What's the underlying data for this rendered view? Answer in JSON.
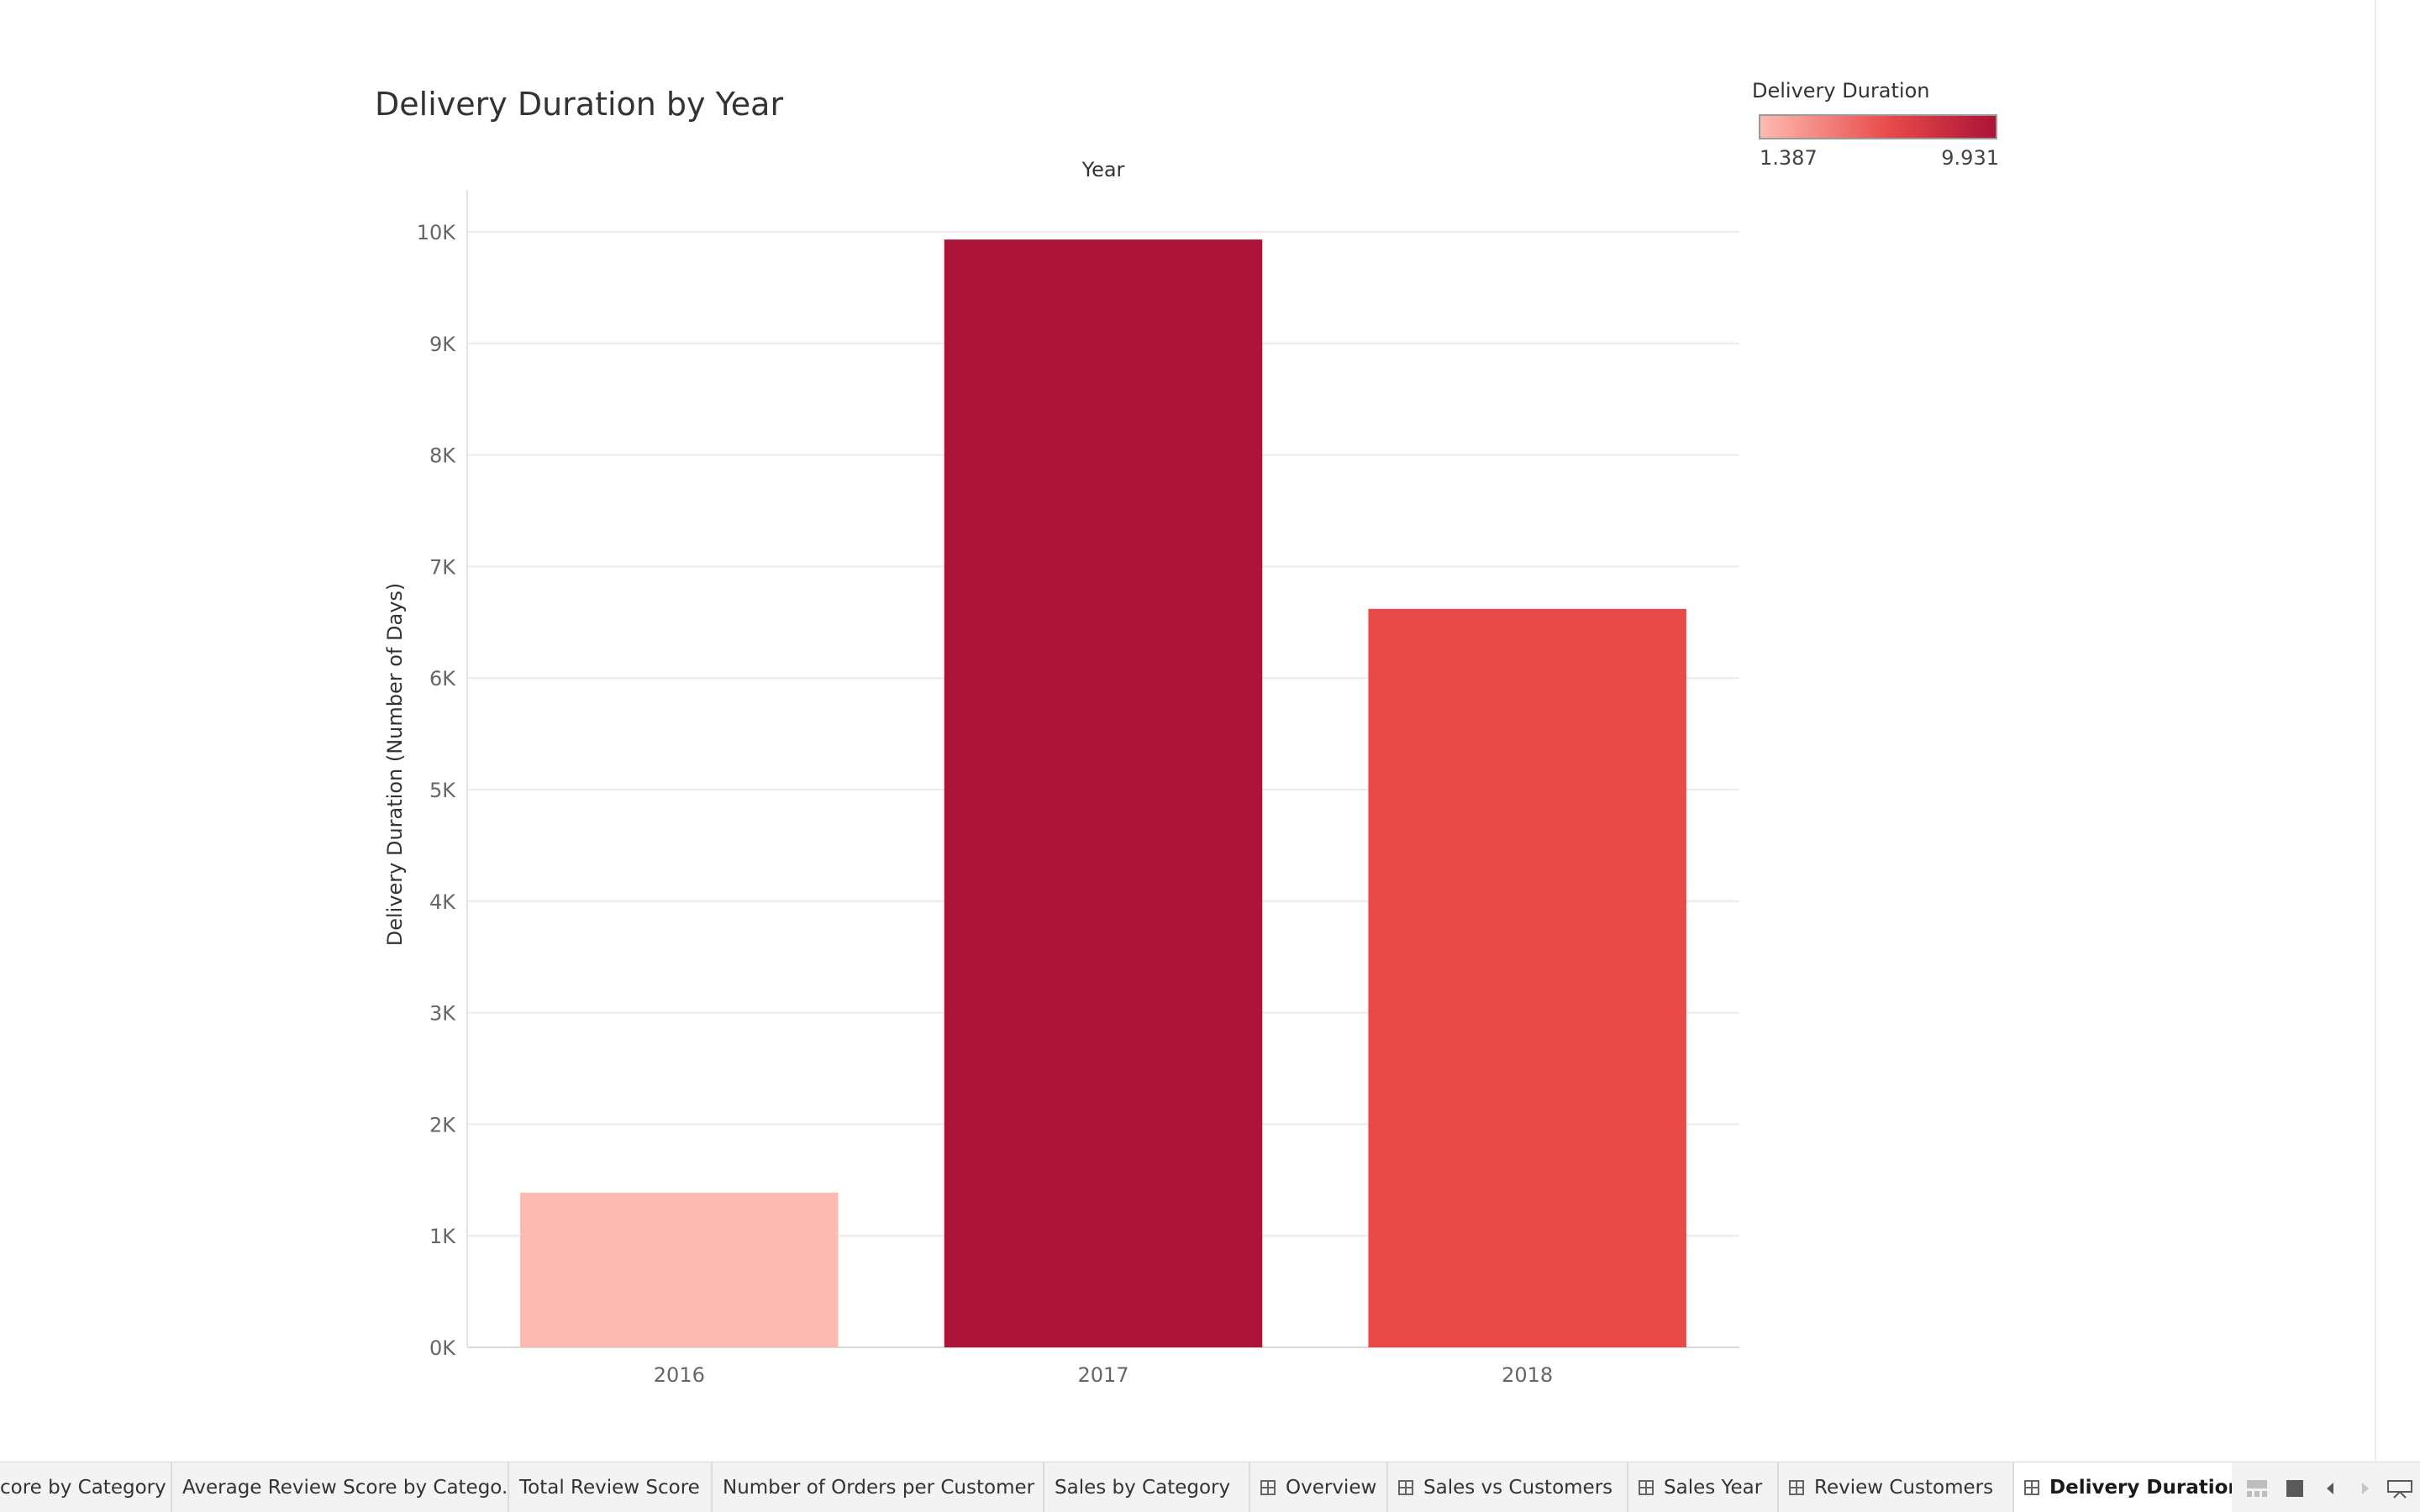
{
  "sheet": {
    "title": "Delivery Duration by Year"
  },
  "legend": {
    "title": "Delivery Duration",
    "min_label": "1.387",
    "max_label": "9.931",
    "color_low": "#fcbbb0",
    "color_mid": "#e84a49",
    "color_high": "#ab1338"
  },
  "chart_data": {
    "type": "bar",
    "title": "Delivery Duration by Year",
    "xlabel": "Year",
    "ylabel": "Delivery Duration (Number of Days)",
    "categories": [
      "2016",
      "2017",
      "2018"
    ],
    "values": [
      1387,
      9931,
      6620
    ],
    "bar_colors": [
      "#fcbbb0",
      "#ab1338",
      "#e84a49"
    ],
    "ylim": [
      0,
      10000
    ],
    "yticks": [
      0,
      1000,
      2000,
      3000,
      4000,
      5000,
      6000,
      7000,
      8000,
      9000,
      10000
    ],
    "ytick_labels": [
      "0K",
      "1K",
      "2K",
      "3K",
      "4K",
      "5K",
      "6K",
      "7K",
      "8K",
      "9K",
      "10K"
    ],
    "grid": true,
    "legend_position": "top-right"
  },
  "tabs": [
    {
      "label": "core by Category",
      "icon": false,
      "active": false
    },
    {
      "label": "Average Review Score by Catego...",
      "icon": false,
      "active": false
    },
    {
      "label": "Total Review Score",
      "icon": false,
      "active": false
    },
    {
      "label": "Number of Orders per Customer",
      "icon": false,
      "active": false
    },
    {
      "label": "Sales by Category",
      "icon": false,
      "active": false
    },
    {
      "label": "Overview",
      "icon": "dashboard-icon",
      "active": false
    },
    {
      "label": "Sales vs Customers",
      "icon": "dashboard-icon",
      "active": false
    },
    {
      "label": "Sales Year",
      "icon": "dashboard-icon",
      "active": false
    },
    {
      "label": "Review Customers",
      "icon": "dashboard-icon",
      "active": false
    },
    {
      "label": "Delivery Duration",
      "icon": "dashboard-icon",
      "active": true
    }
  ]
}
